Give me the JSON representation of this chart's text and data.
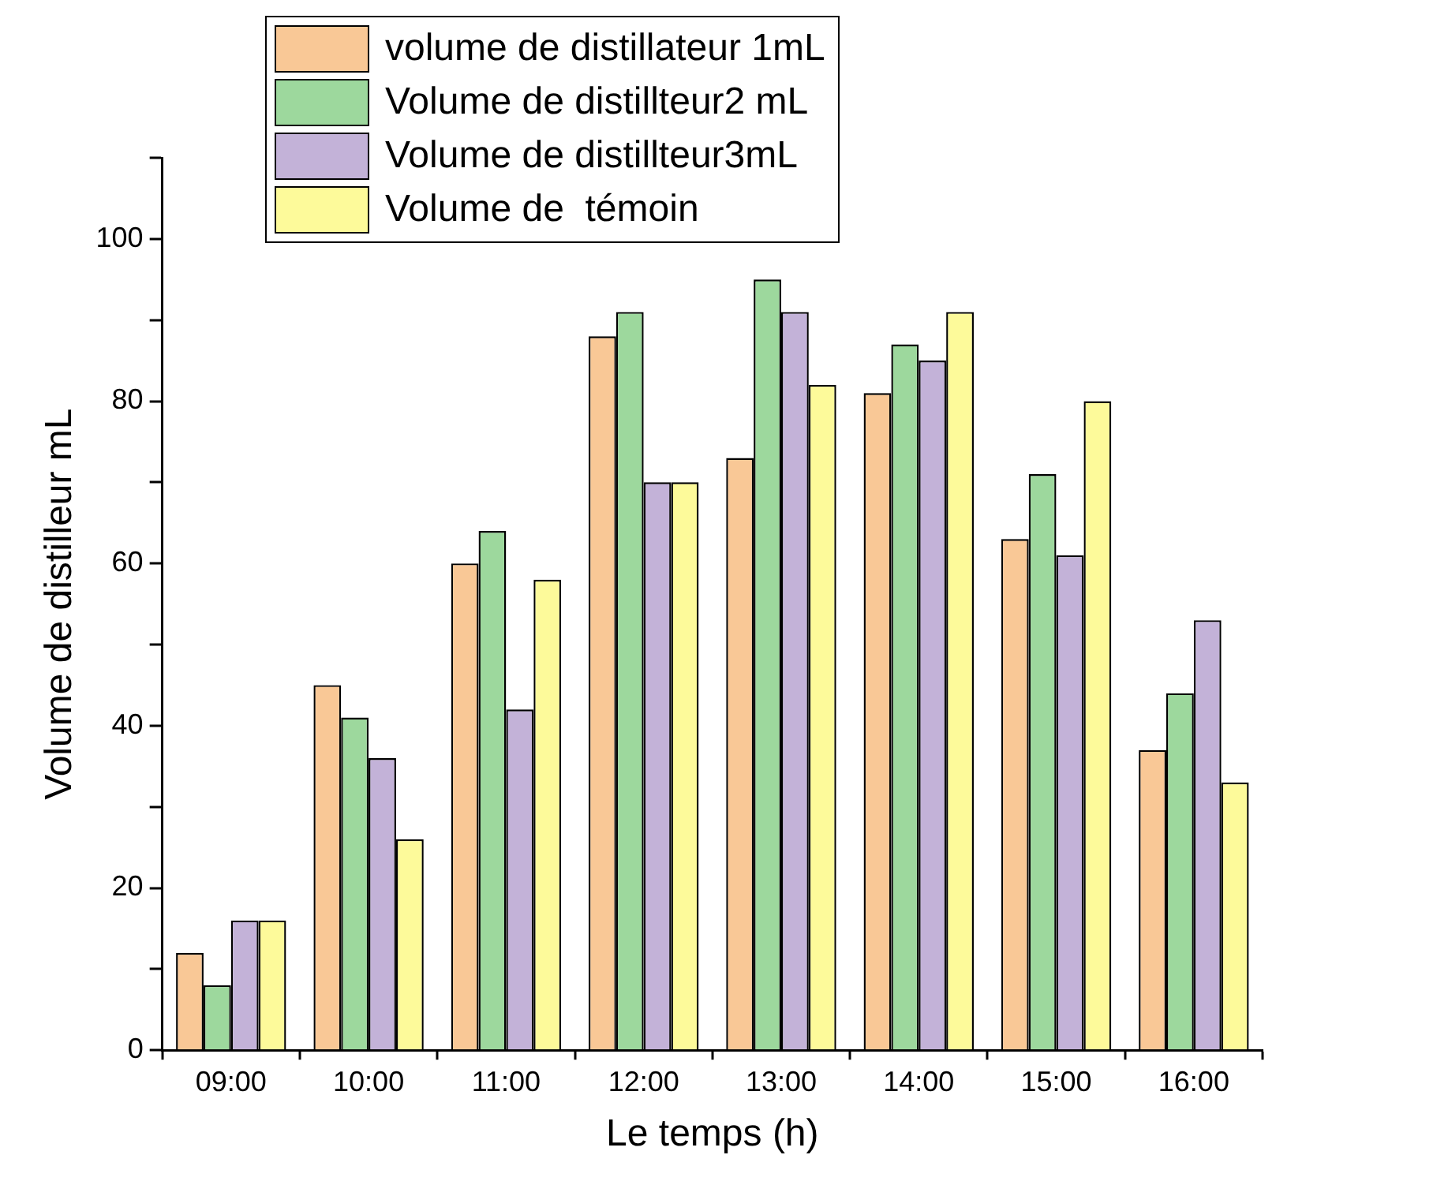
{
  "chart_data": {
    "type": "bar",
    "xlabel": "Le temps (h)",
    "ylabel": "Volume de distilleur mL",
    "categories": [
      "09:00",
      "10:00",
      "11:00",
      "12:00",
      "13:00",
      "14:00",
      "15:00",
      "16:00"
    ],
    "series": [
      {
        "name": "volume de distillateur 1mL",
        "color": "#f9c896",
        "values": [
          12,
          45,
          60,
          88,
          73,
          81,
          63,
          37
        ]
      },
      {
        "name": "Volume de distillteur2 mL",
        "color": "#9dd89d",
        "values": [
          8,
          41,
          64,
          91,
          95,
          87,
          71,
          44
        ]
      },
      {
        "name": "Volume de distillteur3mL",
        "color": "#c3b2d8",
        "values": [
          16,
          36,
          42,
          70,
          91,
          85,
          61,
          53
        ]
      },
      {
        "name": "Volume de  témoin",
        "color": "#fdfa9a",
        "values": [
          16,
          26,
          58,
          70,
          82,
          91,
          80,
          33
        ]
      }
    ],
    "ylim": [
      0,
      110
    ],
    "yticks": [
      0,
      {
        "value": 10,
        "label": null
      },
      20,
      {
        "value": 30,
        "label": null
      },
      40,
      {
        "value": 50,
        "label": null
      },
      60,
      {
        "value": 70,
        "label": null
      },
      80,
      {
        "value": 90,
        "label": null
      },
      100,
      {
        "value": 110,
        "label": null
      }
    ],
    "grid": false,
    "legend": "top"
  }
}
